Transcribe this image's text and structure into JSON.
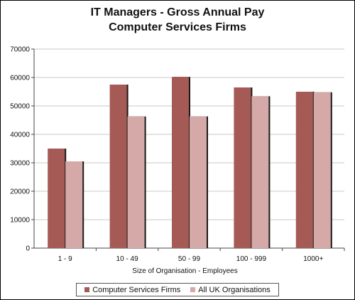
{
  "chart_data": {
    "type": "bar",
    "title": "IT Managers - Gross Annual Pay",
    "subtitle": "Computer Services Firms",
    "xlabel": "Size of Organisation - Employees",
    "ylabel": "",
    "categories": [
      "1 - 9",
      "10 - 49",
      "50 - 99",
      "100 - 999",
      "1000+"
    ],
    "series": [
      {
        "name": "Computer Services Firms",
        "values": [
          35000,
          57500,
          60200,
          56500,
          55000
        ],
        "color": "#a65a55"
      },
      {
        "name": "All UK Organisations",
        "values": [
          30500,
          46300,
          46300,
          53400,
          54800
        ],
        "color": "#d4a9a7"
      }
    ],
    "ylim": [
      0,
      70000
    ],
    "yticks": [
      0,
      10000,
      20000,
      30000,
      40000,
      50000,
      60000,
      70000
    ],
    "grid": true,
    "legend": "bottom"
  }
}
